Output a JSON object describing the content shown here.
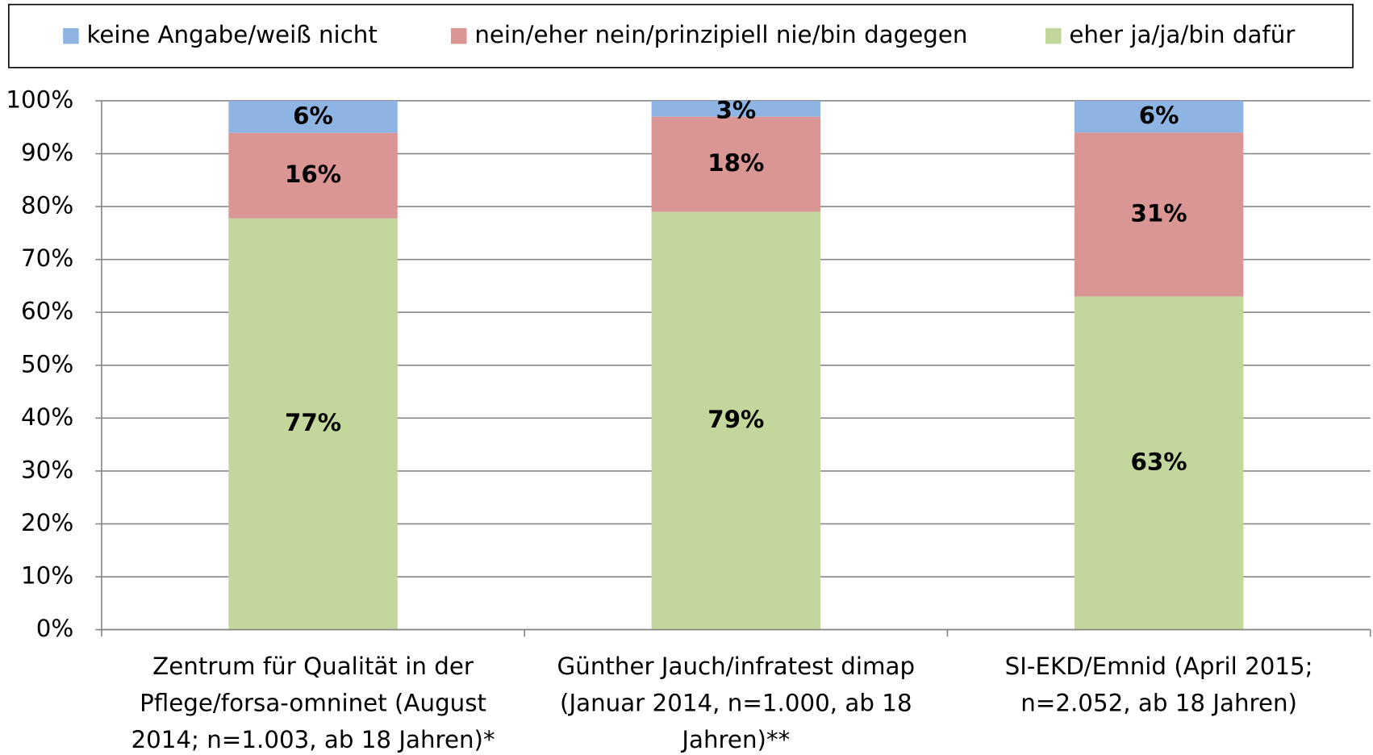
{
  "chart_data": {
    "type": "bar",
    "stacking": "percent",
    "categories": [
      "Zentrum für Qualität in der Pflege/forsa-omninet (August 2014; n=1.003, ab 18 Jahren)*",
      "Günther Jauch/infratest dimap (Januar 2014, n=1.000, ab 18 Jahren)**",
      "SI-EKD/Emnid (April 2015; n=2.052, ab 18 Jahren)"
    ],
    "series": [
      {
        "name": "keine Angabe/weiß nicht",
        "color": "#8eb4e3",
        "values": [
          6,
          3,
          6
        ],
        "value_labels": [
          "6%",
          "3%",
          "6%"
        ]
      },
      {
        "name": "nein/eher nein/prinzipiell nie/bin dagegen",
        "color": "#d99694",
        "values": [
          16,
          18,
          31
        ],
        "value_labels": [
          "16%",
          "18%",
          "31%"
        ]
      },
      {
        "name": "eher ja/ja/bin dafür",
        "color": "#c3d69b",
        "values": [
          77,
          79,
          63
        ],
        "value_labels": [
          "77%",
          "79%",
          "63%"
        ]
      }
    ],
    "ylim": [
      0,
      100
    ],
    "yticks": [
      {
        "value": 0,
        "label": "0%"
      },
      {
        "value": 10,
        "label": "10%"
      },
      {
        "value": 20,
        "label": "20%"
      },
      {
        "value": 30,
        "label": "30%"
      },
      {
        "value": 40,
        "label": "40%"
      },
      {
        "value": 50,
        "label": "50%"
      },
      {
        "value": 60,
        "label": "60%"
      },
      {
        "value": 70,
        "label": "70%"
      },
      {
        "value": 80,
        "label": "80%"
      },
      {
        "value": 90,
        "label": "90%"
      },
      {
        "value": 100,
        "label": "100%"
      }
    ],
    "grid": true,
    "legend": "top"
  }
}
